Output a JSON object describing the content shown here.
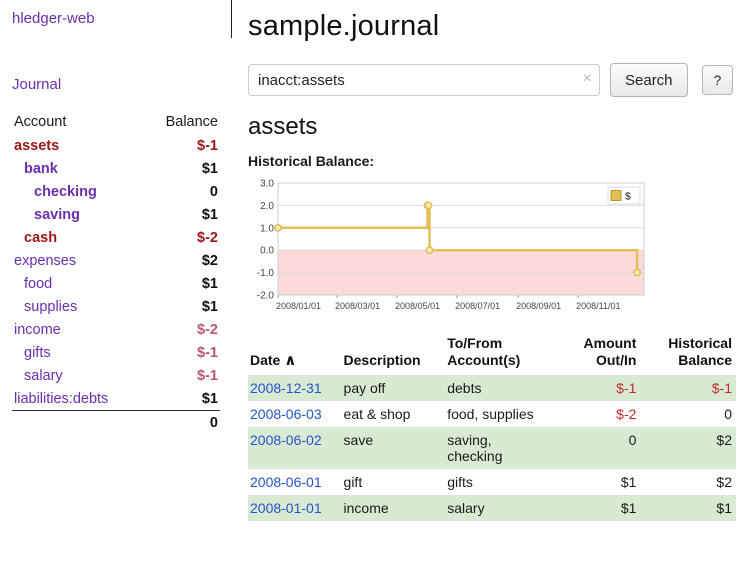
{
  "colors": {
    "link-purple": "#6a2fae",
    "link-blue": "#2553cc",
    "neg-dark": "#9d1616",
    "neg-red": "#c02a2a",
    "neg-rose": "#bb5577",
    "row-green": "#d9ead3",
    "chart-line": "#e2bf57",
    "chart-marker-fill": "#f6ebbc",
    "chart-neg-fill": "#fcdada"
  },
  "brand": {
    "title": "hledger-web"
  },
  "sidebar": {
    "journal_label": "Journal",
    "headers": {
      "account": "Account",
      "balance": "Balance"
    },
    "accounts": [
      {
        "name": "assets",
        "balance": "$-1",
        "indent": 0,
        "bold": true,
        "name_style": "negative",
        "balance_style": "negative"
      },
      {
        "name": "bank",
        "balance": "$1",
        "indent": 1,
        "bold": true,
        "name_style": "normal",
        "balance_style": "normal"
      },
      {
        "name": "checking",
        "balance": "0",
        "indent": 2,
        "bold": true,
        "name_style": "normal",
        "balance_style": "normal"
      },
      {
        "name": "saving",
        "balance": "$1",
        "indent": 2,
        "bold": true,
        "name_style": "normal",
        "balance_style": "normal"
      },
      {
        "name": "cash",
        "balance": "$-2",
        "indent": 1,
        "bold": true,
        "name_style": "negative",
        "balance_style": "negative"
      },
      {
        "name": "expenses",
        "balance": "$2",
        "indent": 0,
        "bold": false,
        "name_style": "normal",
        "balance_style": "normal"
      },
      {
        "name": "food",
        "balance": "$1",
        "indent": 1,
        "bold": false,
        "name_style": "normal",
        "balance_style": "normal"
      },
      {
        "name": "supplies",
        "balance": "$1",
        "indent": 1,
        "bold": false,
        "name_style": "normal",
        "balance_style": "normal"
      },
      {
        "name": "income",
        "balance": "$-2",
        "indent": 0,
        "bold": false,
        "name_style": "normal",
        "balance_style": "rose"
      },
      {
        "name": "gifts",
        "balance": "$-1",
        "indent": 1,
        "bold": false,
        "name_style": "normal",
        "balance_style": "rose"
      },
      {
        "name": "salary",
        "balance": "$-1",
        "indent": 1,
        "bold": false,
        "name_style": "normal",
        "balance_style": "rose"
      },
      {
        "name": "liabilities:debts",
        "balance": "$1",
        "indent": 0,
        "bold": false,
        "name_style": "normal",
        "balance_style": "normal"
      }
    ],
    "total": "0"
  },
  "main": {
    "title": "sample.journal",
    "search": {
      "value": "inacct:assets",
      "clear_icon": "×",
      "button_label": "Search",
      "help_label": "?"
    },
    "account_heading": "assets",
    "chart_heading": "Historical Balance:"
  },
  "chart_data": {
    "type": "line",
    "step": true,
    "title": "Historical Balance",
    "xlabel": "",
    "ylabel": "",
    "legend": [
      {
        "label": "$",
        "color": "#e2bf57"
      }
    ],
    "legend_position": "top-right",
    "x": [
      "2008-01-01",
      "2008-06-01",
      "2008-06-02",
      "2008-06-03",
      "2008-12-31"
    ],
    "series": [
      {
        "name": "$",
        "values": [
          1,
          2,
          2,
          0,
          -1
        ]
      }
    ],
    "ylim": [
      -2,
      3
    ],
    "yticks": [
      "3.0",
      "2.0",
      "1.0",
      "0.0",
      "-1.0",
      "-2.0"
    ],
    "xticks": [
      "2008/01/01",
      "2008/03/01",
      "2008/05/01",
      "2008/07/01",
      "2008/09/01",
      "2008/11/01"
    ],
    "grid": true,
    "negative_region_shaded": true
  },
  "register": {
    "headers": {
      "date": "Date",
      "sort_icon": "∧",
      "description": "Description",
      "accounts": "To/From Account(s)",
      "amount": "Amount Out/In",
      "balance": "Historical Balance"
    },
    "rows": [
      {
        "date": "2008-12-31",
        "description": "pay off",
        "accounts": "debts",
        "amount": "$-1",
        "amount_style": "negative",
        "balance": "$-1",
        "balance_style": "negative"
      },
      {
        "date": "2008-06-03",
        "description": "eat & shop",
        "accounts": "food, supplies",
        "amount": "$-2",
        "amount_style": "negative",
        "balance": "0",
        "balance_style": "normal"
      },
      {
        "date": "2008-06-02",
        "description": "save",
        "accounts": "saving, checking",
        "amount": "0",
        "amount_style": "normal",
        "balance": "$2",
        "balance_style": "normal"
      },
      {
        "date": "2008-06-01",
        "description": "gift",
        "accounts": "gifts",
        "amount": "$1",
        "amount_style": "normal",
        "balance": "$2",
        "balance_style": "normal"
      },
      {
        "date": "2008-01-01",
        "description": "income",
        "accounts": "salary",
        "amount": "$1",
        "amount_style": "normal",
        "balance": "$1",
        "balance_style": "normal"
      }
    ]
  }
}
